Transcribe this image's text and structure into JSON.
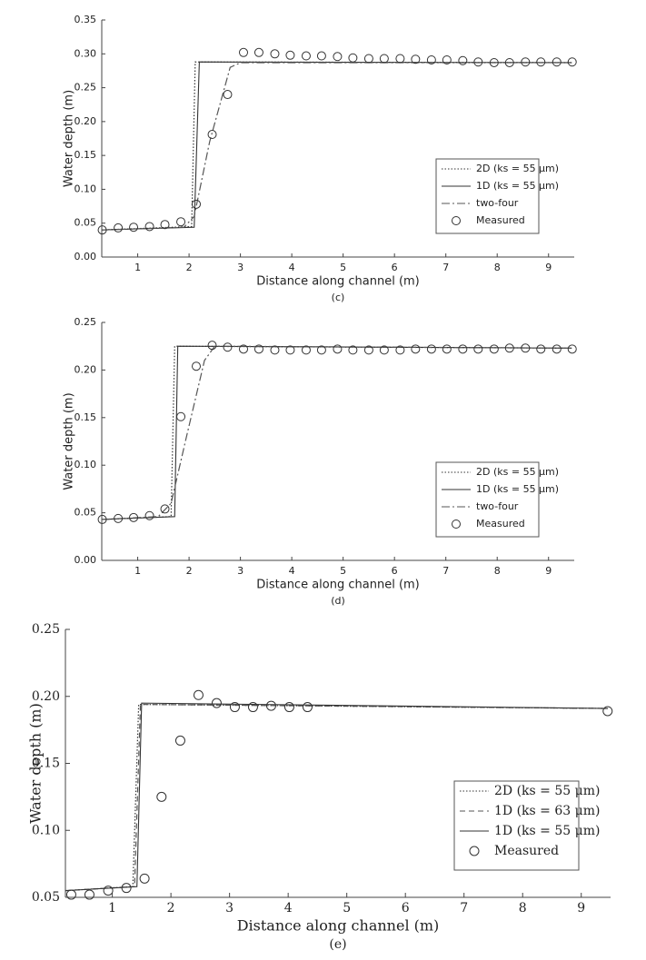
{
  "chart_data": [
    {
      "type": "line",
      "caption": "(c)",
      "x_label": "Distance along channel (m)",
      "y_label": "Water depth (m)",
      "xlim": [
        0.3,
        9.5
      ],
      "xticks": [
        1,
        2,
        3,
        4,
        5,
        6,
        7,
        8,
        9
      ],
      "ylim": [
        0,
        0.35
      ],
      "yticks": [
        {
          "value": 0,
          "label": "0.00"
        },
        0.05,
        {
          "value": 0.1,
          "label": "0.10"
        },
        0.15,
        {
          "value": 0.2,
          "label": "0.20"
        },
        0.25,
        {
          "value": 0.3,
          "label": "0.30"
        },
        0.35
      ],
      "legend": "lower right",
      "series": [
        {
          "name": "2D (ks = 55 μm)",
          "color": "#333333",
          "linestyle": "dotted",
          "x": [
            0.3,
            2.05,
            2.12,
            9.45
          ],
          "values": [
            0.04,
            0.045,
            0.288,
            0.287
          ]
        },
        {
          "name": "1D (ks = 55 μm)",
          "color": "#333333",
          "linestyle": "solid",
          "x": [
            0.3,
            2.1,
            2.2,
            9.45
          ],
          "values": [
            0.04,
            0.044,
            0.288,
            0.287
          ]
        },
        {
          "name": "two-four",
          "color": "#555555",
          "linestyle": "dashdot",
          "x": [
            0.3,
            1.9,
            2.1,
            2.4,
            2.8,
            3.0,
            9.45
          ],
          "values": [
            0.04,
            0.044,
            0.06,
            0.17,
            0.28,
            0.287,
            0.287
          ]
        },
        {
          "name": "Measured",
          "color": "#333333",
          "linestyle": "markers",
          "x": [
            0.31,
            0.62,
            0.92,
            1.23,
            1.53,
            1.84,
            2.14,
            2.45,
            2.75,
            3.06,
            3.36,
            3.67,
            3.97,
            4.28,
            4.58,
            4.89,
            5.19,
            5.5,
            5.8,
            6.11,
            6.41,
            6.72,
            7.02,
            7.33,
            7.63,
            7.94,
            8.24,
            8.55,
            8.85,
            9.16,
            9.46
          ],
          "values": [
            0.04,
            0.043,
            0.044,
            0.045,
            0.048,
            0.052,
            0.078,
            0.181,
            0.24,
            0.302,
            0.302,
            0.3,
            0.298,
            0.297,
            0.297,
            0.296,
            0.294,
            0.293,
            0.293,
            0.293,
            0.292,
            0.291,
            0.291,
            0.29,
            0.288,
            0.287,
            0.287,
            0.288,
            0.288,
            0.288,
            0.288
          ]
        }
      ]
    },
    {
      "type": "line",
      "caption": "(d)",
      "x_label": "Distance along channel (m)",
      "y_label": "Water depth (m)",
      "xlim": [
        0.3,
        9.5
      ],
      "xticks": [
        1,
        2,
        3,
        4,
        5,
        6,
        7,
        8,
        9
      ],
      "ylim": [
        0,
        0.25
      ],
      "yticks": [
        {
          "value": 0,
          "label": "0.00"
        },
        0.05,
        {
          "value": 0.1,
          "label": "0.10"
        },
        0.15,
        {
          "value": 0.2,
          "label": "0.20"
        },
        0.25
      ],
      "legend": "lower right",
      "series": [
        {
          "name": "2D (ks = 55 μm)",
          "color": "#333333",
          "linestyle": "dotted",
          "x": [
            0.3,
            1.65,
            1.72,
            9.45
          ],
          "values": [
            0.043,
            0.046,
            0.225,
            0.223
          ]
        },
        {
          "name": "1D (ks = 55 μm)",
          "color": "#333333",
          "linestyle": "solid",
          "x": [
            0.3,
            1.72,
            1.78,
            9.45
          ],
          "values": [
            0.043,
            0.046,
            0.225,
            0.223
          ]
        },
        {
          "name": "two-four",
          "color": "#555555",
          "linestyle": "dashdot",
          "x": [
            0.3,
            1.4,
            1.65,
            1.95,
            2.3,
            2.5,
            9.45
          ],
          "values": [
            0.043,
            0.046,
            0.06,
            0.13,
            0.21,
            0.225,
            0.223
          ]
        },
        {
          "name": "Measured",
          "color": "#333333",
          "linestyle": "markers",
          "x": [
            0.31,
            0.62,
            0.92,
            1.23,
            1.53,
            1.84,
            2.14,
            2.45,
            2.75,
            3.06,
            3.36,
            3.67,
            3.97,
            4.28,
            4.58,
            4.89,
            5.19,
            5.5,
            5.8,
            6.11,
            6.41,
            6.72,
            7.02,
            7.33,
            7.63,
            7.94,
            8.24,
            8.55,
            8.85,
            9.16,
            9.46
          ],
          "values": [
            0.043,
            0.044,
            0.045,
            0.047,
            0.054,
            0.151,
            0.204,
            0.226,
            0.224,
            0.222,
            0.222,
            0.221,
            0.221,
            0.221,
            0.221,
            0.222,
            0.221,
            0.221,
            0.221,
            0.221,
            0.222,
            0.222,
            0.222,
            0.222,
            0.222,
            0.222,
            0.223,
            0.223,
            0.222,
            0.222,
            0.222
          ]
        }
      ]
    },
    {
      "type": "line",
      "caption": "(e)",
      "x_label": "Distance along channel (m)",
      "y_label": "Water depth (m)",
      "xlim": [
        0.2,
        9.5
      ],
      "xticks": [
        1,
        2,
        3,
        4,
        5,
        6,
        7,
        8,
        9
      ],
      "ylim": [
        0.05,
        0.25
      ],
      "yticks": [
        0.05,
        {
          "value": 0.1,
          "label": "0.10"
        },
        0.15,
        {
          "value": 0.2,
          "label": "0.20"
        },
        0.25
      ],
      "legend": "lower right",
      "series": [
        {
          "name": "2D (ks = 55 μm)",
          "color": "#333333",
          "linestyle": "dotted",
          "x": [
            0.2,
            1.35,
            1.45,
            9.45
          ],
          "values": [
            0.055,
            0.058,
            0.194,
            0.191
          ]
        },
        {
          "name": "1D (ks = 63 μm)",
          "color": "#555555",
          "linestyle": "dashed",
          "x": [
            0.2,
            1.38,
            1.48,
            9.45
          ],
          "values": [
            0.055,
            0.058,
            0.194,
            0.191
          ]
        },
        {
          "name": "1D (ks = 55 μm)",
          "color": "#333333",
          "linestyle": "solid",
          "x": [
            0.2,
            1.42,
            1.5,
            9.45
          ],
          "values": [
            0.055,
            0.058,
            0.195,
            0.191
          ]
        },
        {
          "name": "Measured",
          "color": "#333333",
          "linestyle": "markers",
          "x": [
            0.3,
            0.61,
            0.93,
            1.24,
            1.55,
            1.84,
            2.16,
            2.47,
            2.78,
            3.09,
            3.4,
            3.71,
            4.02,
            4.33,
            9.45
          ],
          "values": [
            0.052,
            0.052,
            0.055,
            0.057,
            0.064,
            0.125,
            0.167,
            0.201,
            0.195,
            0.192,
            0.192,
            0.193,
            0.192,
            0.192,
            0.189
          ]
        }
      ]
    }
  ]
}
